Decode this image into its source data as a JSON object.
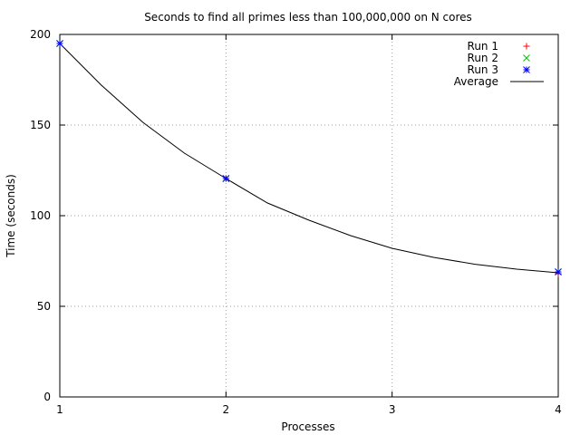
{
  "chart_data": {
    "type": "line",
    "title": "Seconds to find all primes less than 100,000,000 on N cores",
    "xlabel": "Processes",
    "ylabel": "Time (seconds)",
    "xlim": [
      1,
      4
    ],
    "ylim": [
      0,
      200
    ],
    "xticks": [
      1,
      2,
      3,
      4
    ],
    "yticks": [
      0,
      50,
      100,
      150,
      200
    ],
    "grid": true,
    "legend_position": "top-right",
    "x": [
      1,
      2,
      4
    ],
    "series": [
      {
        "name": "Run 1",
        "style": "plus",
        "color": "#ff0000",
        "values": [
          195,
          120.5,
          68
        ]
      },
      {
        "name": "Run 2",
        "style": "cross",
        "color": "#00c000",
        "values": [
          195,
          120.5,
          69
        ]
      },
      {
        "name": "Run 3",
        "style": "star",
        "color": "#0000ff",
        "values": [
          195,
          120.5,
          69
        ]
      },
      {
        "name": "Average",
        "style": "line",
        "color": "#000000",
        "curve_x": [
          1.0,
          1.25,
          1.5,
          1.75,
          2.0,
          2.25,
          2.5,
          2.75,
          3.0,
          3.25,
          3.5,
          3.75,
          4.0
        ],
        "curve_y": [
          195,
          172,
          151.5,
          134.5,
          120.5,
          107,
          97.5,
          89,
          82,
          77,
          73.2,
          70.5,
          68.5
        ]
      }
    ]
  }
}
